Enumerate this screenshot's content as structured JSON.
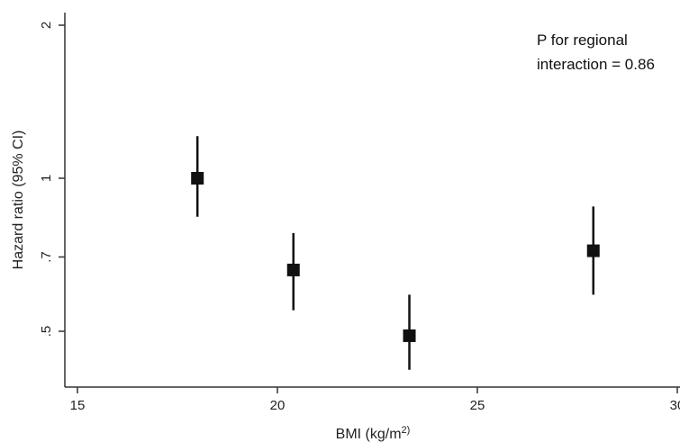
{
  "chart_data": {
    "type": "scatter",
    "xlabel": "BMI (kg/m",
    "xlabel_sup": "2",
    "xlabel_suffix": ")",
    "ylabel": "Hazard ratio (95% CI)",
    "y_scale": "log",
    "xlim": [
      15,
      30
    ],
    "ylim": [
      0.43,
      2.05
    ],
    "x_ticks": [
      {
        "value": 15,
        "label": "15"
      },
      {
        "value": 20,
        "label": "20"
      },
      {
        "value": 25,
        "label": "25"
      },
      {
        "value": 30,
        "label": "30"
      }
    ],
    "y_ticks": [
      {
        "value": 0.5,
        "label": ".5"
      },
      {
        "value": 0.7,
        "label": ".7"
      },
      {
        "value": 1,
        "label": "1"
      },
      {
        "value": 2,
        "label": "2"
      }
    ],
    "points": [
      {
        "x": 18.0,
        "y": 1.0,
        "ci_low": 0.84,
        "ci_high": 1.21
      },
      {
        "x": 20.4,
        "y": 0.66,
        "ci_low": 0.55,
        "ci_high": 0.78
      },
      {
        "x": 23.3,
        "y": 0.49,
        "ci_low": 0.42,
        "ci_high": 0.59
      },
      {
        "x": 27.9,
        "y": 0.72,
        "ci_low": 0.59,
        "ci_high": 0.88
      }
    ],
    "annotation": [
      "P for regional",
      "interaction = 0.86"
    ],
    "grid": false,
    "marker": "square",
    "color": "#111111"
  }
}
